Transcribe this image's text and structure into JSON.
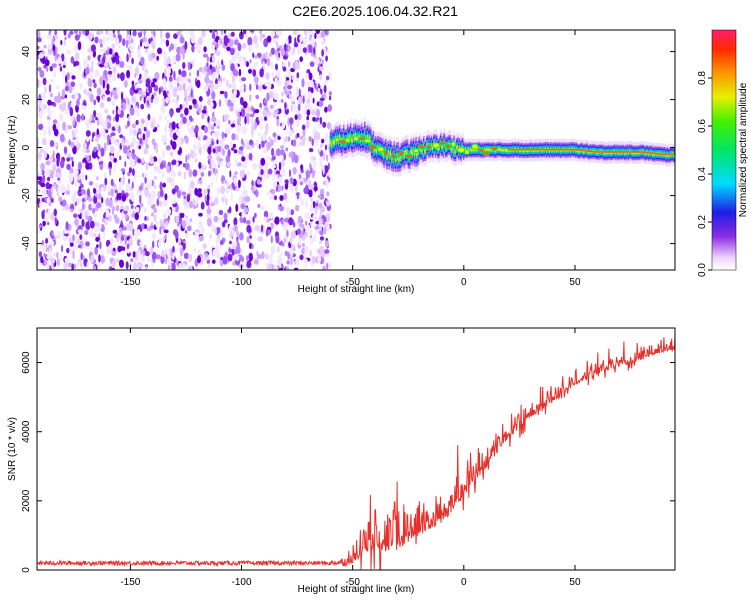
{
  "figure": {
    "title": "C2E6.2025.106.04.32.R21"
  },
  "chart_data": [
    {
      "type": "heatmap",
      "xlabel": "Height of straight line (km)",
      "ylabel": "Frequency (Hz)",
      "xlim": [
        -192,
        95
      ],
      "ylim": [
        -51,
        49
      ],
      "xticks": [
        -150,
        -100,
        -50,
        0,
        50
      ],
      "yticks": [
        -40,
        -20,
        0,
        20,
        40
      ],
      "noise_region": [
        -192,
        -60
      ],
      "signal_track": {
        "x": [
          -60,
          -55,
          -50,
          -45,
          -40,
          -35,
          -30,
          -25,
          -20,
          -15,
          -10,
          -5,
          0,
          5,
          10,
          15,
          20,
          30,
          40,
          50,
          60,
          70,
          80,
          90,
          95
        ],
        "freq": [
          2,
          3,
          4,
          5,
          0,
          -3,
          -4,
          -3,
          -1,
          0,
          1,
          0,
          -1,
          -1,
          -1,
          -1,
          -1,
          -1,
          -1,
          -1,
          -2,
          -2,
          -2,
          -3,
          -3
        ]
      },
      "colorbar": {
        "label": "Normalized spectral amplitude",
        "range": [
          0,
          1
        ],
        "ticks": [
          0.0,
          0.2,
          0.4,
          0.6,
          0.8
        ]
      }
    },
    {
      "type": "line",
      "xlabel": "Height of straight line (km)",
      "ylabel": "SNR (10 * v/v)",
      "xlim": [
        -192,
        95
      ],
      "ylim": [
        0,
        7000
      ],
      "xticks": [
        -150,
        -100,
        -50,
        0,
        50
      ],
      "yticks": [
        0,
        2000,
        4000,
        6000
      ],
      "series": [
        {
          "color": "#e8302a",
          "x": [
            -192,
            -150,
            -100,
            -60,
            -52,
            -48,
            -45,
            -40,
            -35,
            -30,
            -25,
            -20,
            -15,
            -10,
            -5,
            0,
            5,
            10,
            15,
            20,
            25,
            30,
            40,
            50,
            60,
            70,
            80,
            88,
            95
          ],
          "y": [
            200,
            200,
            200,
            200,
            250,
            500,
            900,
            1000,
            1000,
            1000,
            1200,
            1400,
            1500,
            1700,
            2000,
            2400,
            2800,
            3200,
            3600,
            4000,
            4300,
            4600,
            5000,
            5500,
            5800,
            6000,
            6200,
            6400,
            6500
          ],
          "noise": [
            60,
            60,
            60,
            60,
            150,
            500,
            800,
            900,
            900,
            900,
            800,
            800,
            700,
            700,
            600,
            600,
            600,
            500,
            450,
            400,
            400,
            350,
            300,
            300,
            250,
            250,
            250,
            250,
            250
          ]
        }
      ]
    }
  ]
}
